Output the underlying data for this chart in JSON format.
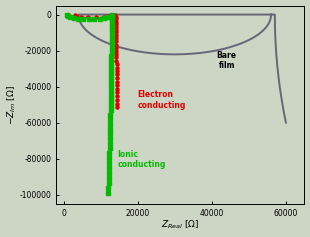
{
  "background_color": "#cdd5c5",
  "plot_bg_color": "#cdd5c5",
  "xlim": [
    -2000,
    65000
  ],
  "ylim": [
    -105000,
    5000
  ],
  "xticks": [
    0,
    20000,
    40000,
    60000
  ],
  "yticks": [
    0,
    -20000,
    -40000,
    -60000,
    -80000,
    -100000
  ],
  "ytick_labels": [
    "0",
    "-20000",
    "-40000",
    "-60000",
    "-80000",
    "-100000"
  ],
  "xtick_labels": [
    "0",
    "20000",
    "40000",
    "60000"
  ],
  "bare_film_label": "Bare\nfilm",
  "ionic_label": "Ionic\nconducting",
  "electron_label": "Electron\nconducting",
  "ionic_color": "#00bb00",
  "electron_color": "#dd0000",
  "bare_color": "#666677"
}
